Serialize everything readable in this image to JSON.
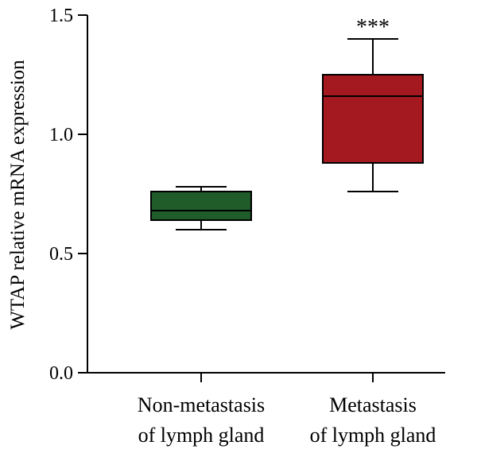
{
  "chart_data": {
    "type": "box",
    "ylabel": "WTAP relative mRNA expression",
    "xlabel": "",
    "ylim": [
      0,
      1.5
    ],
    "yticks": [
      {
        "value": 0.0,
        "label": "0.0"
      },
      {
        "value": 0.5,
        "label": "0.5"
      },
      {
        "value": 1.0,
        "label": "1.0"
      },
      {
        "value": 1.5,
        "label": "1.5"
      }
    ],
    "grid": false,
    "legend": "none",
    "groups": [
      {
        "label_lines": [
          "Non-metastasis",
          "of lymph gland"
        ],
        "min": 0.6,
        "q1": 0.64,
        "median": 0.68,
        "q3": 0.76,
        "max": 0.78,
        "color": "#1f5c2a",
        "significance": ""
      },
      {
        "label_lines": [
          "Metastasis",
          "of lymph gland"
        ],
        "min": 0.76,
        "q1": 0.88,
        "median": 1.16,
        "q3": 1.25,
        "max": 1.4,
        "color": "#a3191f",
        "significance": "***"
      }
    ]
  }
}
